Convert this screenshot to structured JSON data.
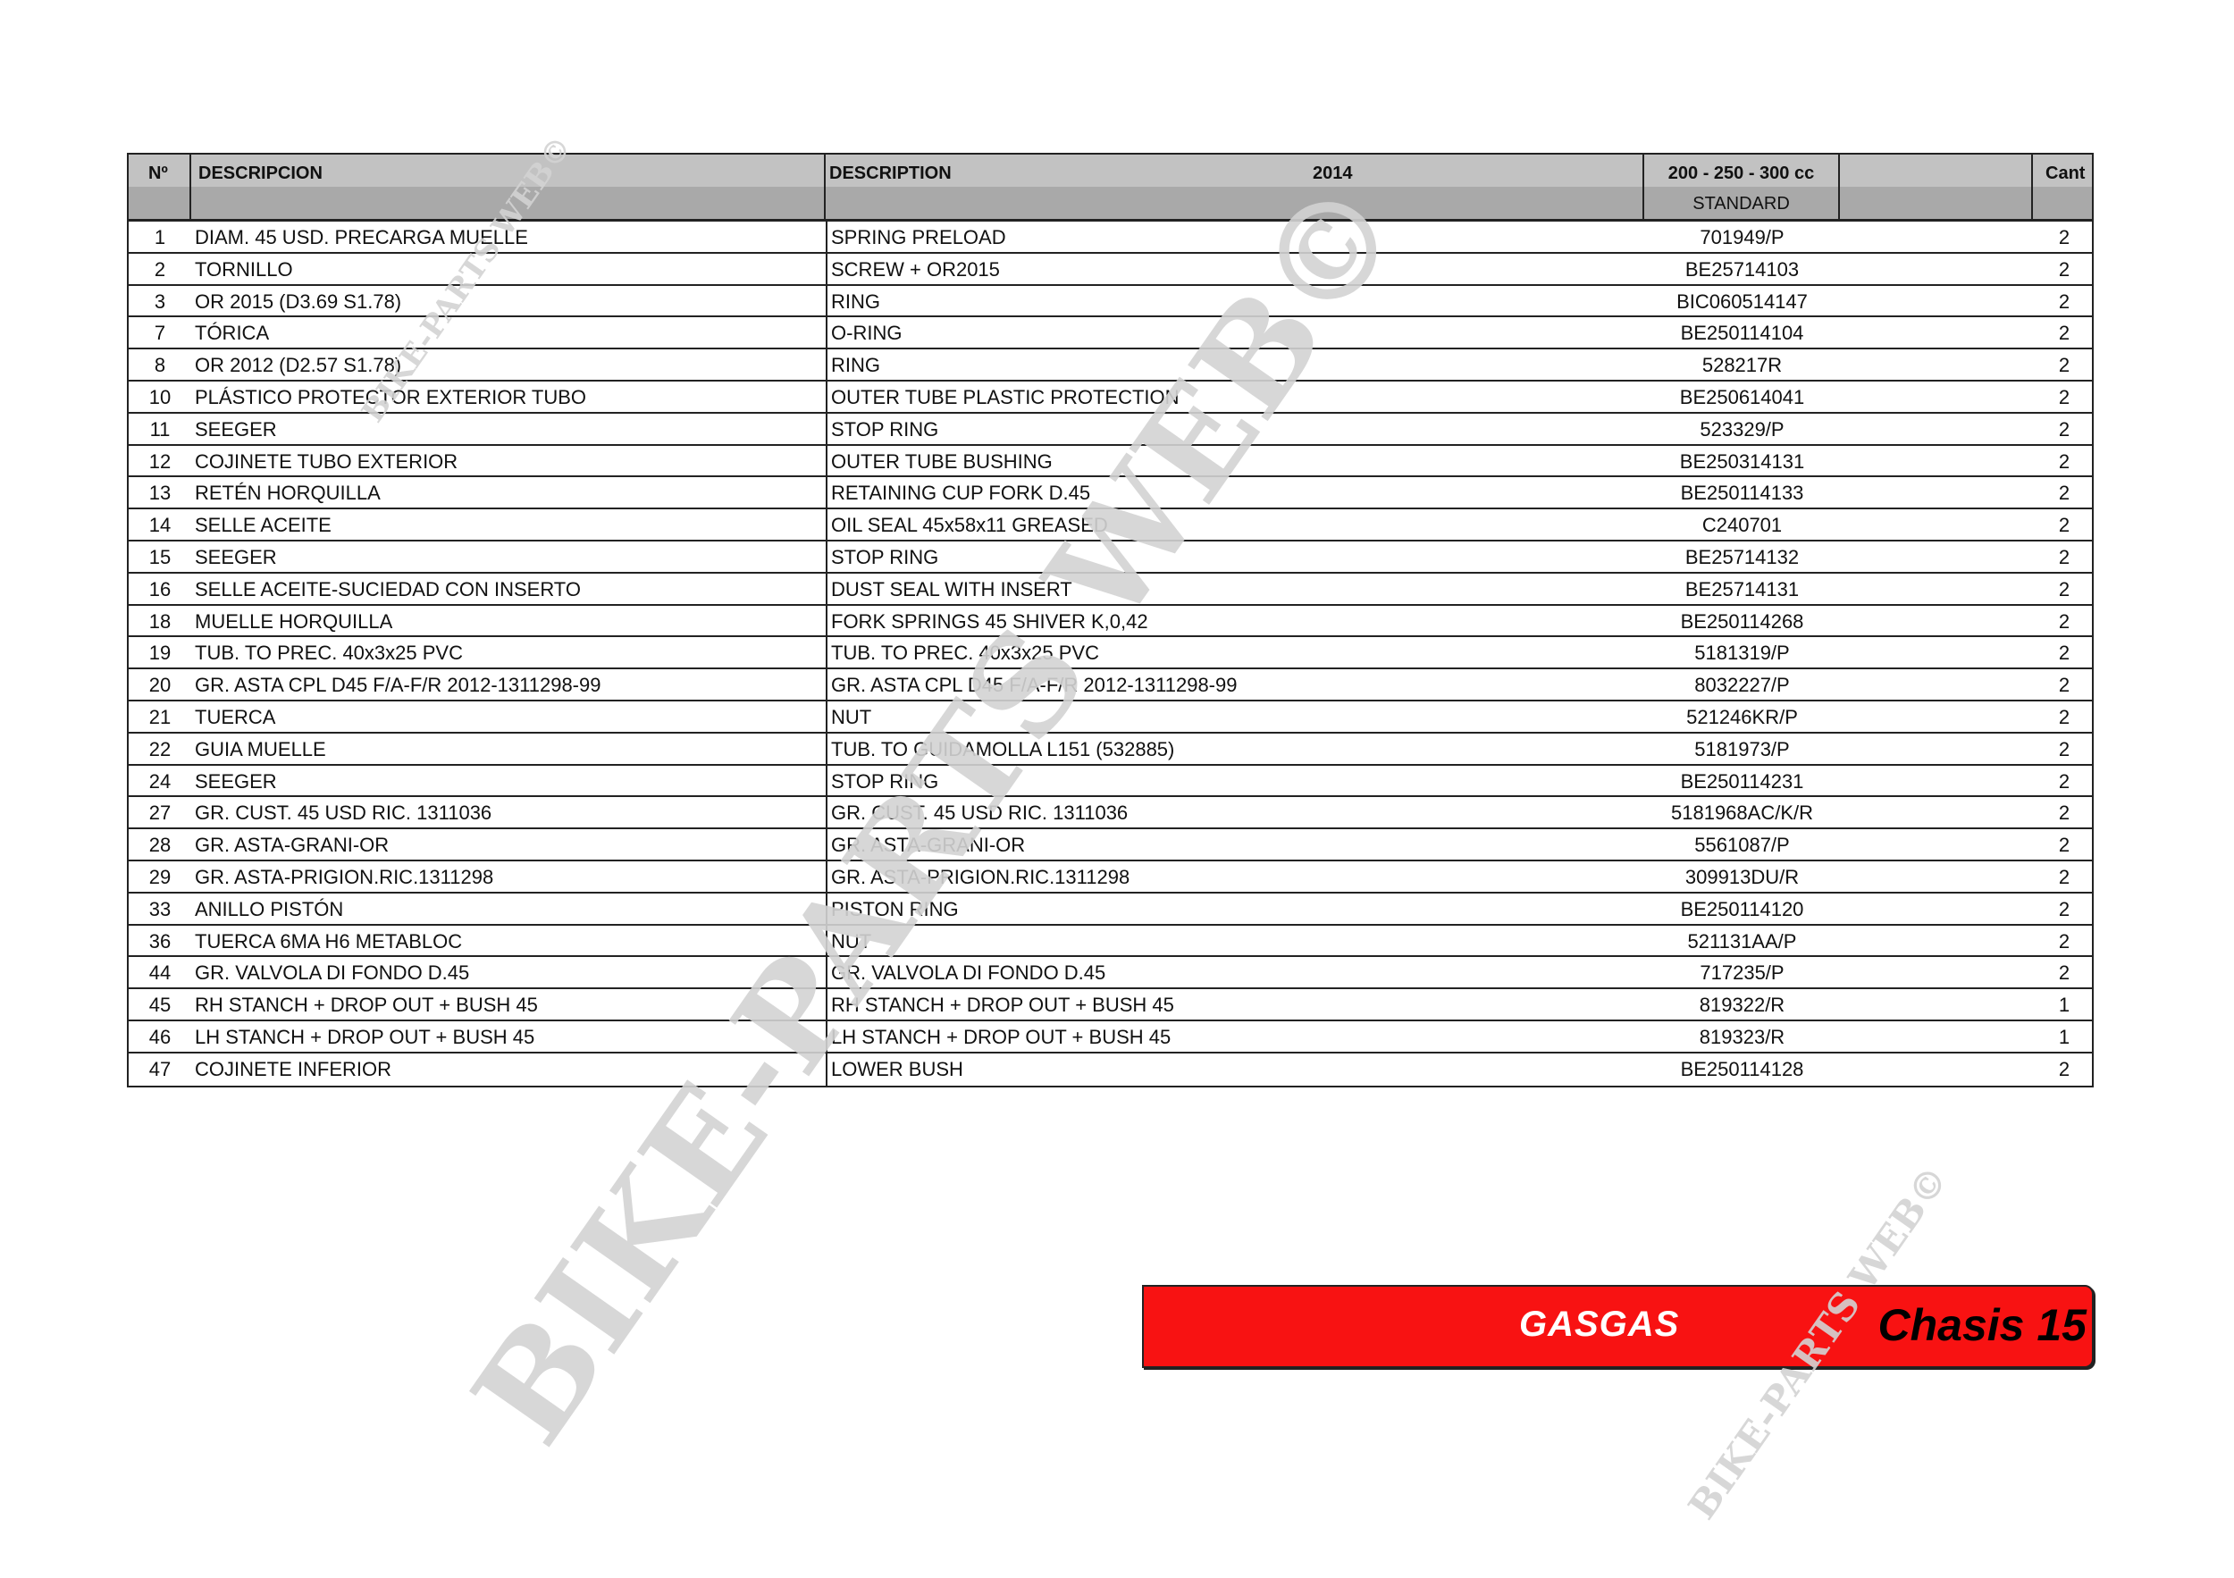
{
  "watermark": "BIKE-PARTS WEB©",
  "colors": {
    "banner": "#f81212",
    "header_light": "#c2c2c2",
    "header_dark": "#a9a9a9",
    "watermark": "#d3d3d3"
  },
  "header": {
    "no": "Nº",
    "descripcion": "DESCRIPCION",
    "description": "DESCRIPTION",
    "year": "2014",
    "model": "200 - 250 - 300 cc",
    "version": "STANDARD",
    "qty": "Cant"
  },
  "rows": [
    {
      "no": "1",
      "es": "DIAM. 45 USD. PRECARGA MUELLE",
      "en": "SPRING PRELOAD",
      "pn": "701949/P",
      "qty": "2"
    },
    {
      "no": "2",
      "es": "TORNILLO",
      "en": "SCREW + OR2015",
      "pn": "BE25714103",
      "qty": "2"
    },
    {
      "no": "3",
      "es": "OR 2015 (D3.69 S1.78)",
      "en": "RING",
      "pn": "BIC060514147",
      "qty": "2"
    },
    {
      "no": "7",
      "es": "TÓRICA",
      "en": "O-RING",
      "pn": "BE250114104",
      "qty": "2"
    },
    {
      "no": "8",
      "es": "OR 2012 (D2.57 S1.78)",
      "en": "RING",
      "pn": "528217R",
      "qty": "2"
    },
    {
      "no": "10",
      "es": "PLÁSTICO PROTECTOR EXTERIOR TUBO",
      "en": "OUTER TUBE PLASTIC PROTECTION",
      "pn": "BE250614041",
      "qty": "2"
    },
    {
      "no": "11",
      "es": "SEEGER",
      "en": "STOP RING",
      "pn": "523329/P",
      "qty": "2"
    },
    {
      "no": "12",
      "es": "COJINETE TUBO EXTERIOR",
      "en": "OUTER TUBE BUSHING",
      "pn": "BE250314131",
      "qty": "2"
    },
    {
      "no": "13",
      "es": "RETÉN HORQUILLA",
      "en": "RETAINING CUP FORK D.45",
      "pn": "BE250114133",
      "qty": "2"
    },
    {
      "no": "14",
      "es": "SELLE ACEITE",
      "en": "OIL SEAL 45x58x11 GREASED",
      "pn": "C240701",
      "qty": "2"
    },
    {
      "no": "15",
      "es": "SEEGER",
      "en": "STOP RING",
      "pn": "BE25714132",
      "qty": "2"
    },
    {
      "no": "16",
      "es": "SELLE ACEITE-SUCIEDAD CON INSERTO",
      "en": "DUST SEAL WITH INSERT",
      "pn": "BE25714131",
      "qty": "2"
    },
    {
      "no": "18",
      "es": "MUELLE HORQUILLA",
      "en": "FORK SPRINGS 45 SHIVER K,0,42",
      "pn": "BE250114268",
      "qty": "2"
    },
    {
      "no": "19",
      "es": "TUB. TO PREC. 40x3x25 PVC",
      "en": "TUB. TO PREC. 40x3x25 PVC",
      "pn": "5181319/P",
      "qty": "2"
    },
    {
      "no": "20",
      "es": "GR. ASTA CPL D45 F/A-F/R 2012-1311298-99",
      "en": "GR. ASTA CPL D45 F/A-F/R 2012-1311298-99",
      "pn": "8032227/P",
      "qty": "2"
    },
    {
      "no": "21",
      "es": "TUERCA",
      "en": "NUT",
      "pn": "521246KR/P",
      "qty": "2"
    },
    {
      "no": "22",
      "es": "GUIA MUELLE",
      "en": "TUB. TO GUIDAMOLLA L151 (532885)",
      "pn": "5181973/P",
      "qty": "2"
    },
    {
      "no": "24",
      "es": "SEEGER",
      "en": "STOP RING",
      "pn": "BE250114231",
      "qty": "2"
    },
    {
      "no": "27",
      "es": "GR. CUST. 45 USD RIC. 1311036",
      "en": "GR. CUST. 45 USD RIC. 1311036",
      "pn": "5181968AC/K/R",
      "qty": "2"
    },
    {
      "no": "28",
      "es": "GR. ASTA-GRANI-OR",
      "en": "GR. ASTA-GRANI-OR",
      "pn": "5561087/P",
      "qty": "2"
    },
    {
      "no": "29",
      "es": "GR. ASTA-PRIGION.RIC.1311298",
      "en": "GR. ASTA-PRIGION.RIC.1311298",
      "pn": "309913DU/R",
      "qty": "2"
    },
    {
      "no": "33",
      "es": "ANILLO PISTÓN",
      "en": "PISTON RING",
      "pn": "BE250114120",
      "qty": "2"
    },
    {
      "no": "36",
      "es": "TUERCA 6MA H6 METABLOC",
      "en": "NUT",
      "pn": "521131AA/P",
      "qty": "2"
    },
    {
      "no": "44",
      "es": "GR. VALVOLA DI FONDO D.45",
      "en": "GR. VALVOLA DI FONDO D.45",
      "pn": "717235/P",
      "qty": "2"
    },
    {
      "no": "45",
      "es": "RH STANCH + DROP OUT + BUSH 45",
      "en": "RH STANCH + DROP OUT + BUSH 45",
      "pn": "819322/R",
      "qty": "1"
    },
    {
      "no": "46",
      "es": "LH STANCH + DROP OUT + BUSH 45",
      "en": "LH STANCH + DROP OUT + BUSH 45",
      "pn": "819323/R",
      "qty": "1"
    },
    {
      "no": "47",
      "es": "COJINETE INFERIOR",
      "en": "LOWER BUSH",
      "pn": "BE250114128",
      "qty": "2"
    }
  ],
  "banner": {
    "brand": "GASGAS",
    "section": "Chasis 15"
  }
}
